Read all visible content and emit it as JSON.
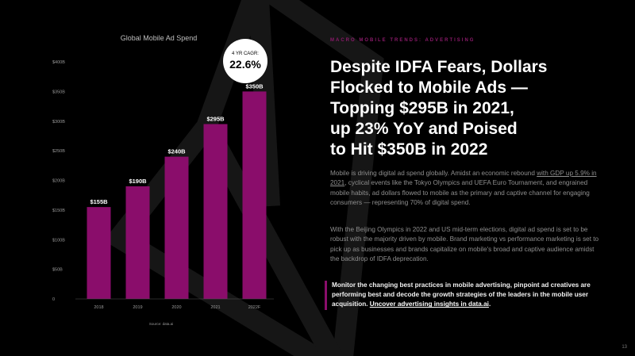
{
  "slide": {
    "eyebrow": "MACRO MOBILE TRENDS: ADVERTISING",
    "headline_lines": [
      "Despite IDFA Fears, Dollars",
      "Flocked to Mobile Ads —",
      "Topping $295B in 2021,",
      "up 23% YoY and Poised",
      "to Hit $350B in 2022"
    ],
    "para1": {
      "lead": "Mobile is driving digital ad spend globally. Amidst an economic rebound ",
      "link": "with GDP up 5.9% in 2021",
      "rest": ", cyclical events like the Tokyo Olympics and UEFA Euro Tournament, and engrained mobile habits, ad dollars flowed to mobile as the primary and captive channel for engaging consumers — representing 70% of digital spend."
    },
    "para2": "With the Beijing Olympics in 2022 and US mid-term elections, digital ad spend is set to be robust with the majority driven by mobile. Brand marketing vs performance marketing is set to pick up as businesses and brands capitalize on mobile's broad and captive audience amidst the backdrop of IDFA deprecation.",
    "callout": {
      "text": "Monitor the changing best practices in mobile advertising, pinpoint ad creatives are performing best and decode the growth strategies of the leaders in the mobile user acquisition. ",
      "link": "Uncover advertising insights in data.ai",
      "end": "."
    },
    "page_number": "13",
    "colors": {
      "bar": "#8a0d6b",
      "accent": "#8a1a6a",
      "background": "#000000"
    }
  },
  "chart_data": {
    "type": "bar",
    "title": "Global Mobile Ad Spend",
    "categories": [
      "2018",
      "2019",
      "2020",
      "2021",
      "2022F"
    ],
    "values": [
      155,
      190,
      240,
      295,
      350
    ],
    "value_labels": [
      "$155B",
      "$190B",
      "$240B",
      "$295B",
      "$350B"
    ],
    "ylim": [
      0,
      400
    ],
    "yticks": [
      0,
      50,
      100,
      150,
      200,
      250,
      300,
      350,
      400
    ],
    "ytick_labels": [
      "0",
      "$50B",
      "$100B",
      "$150B",
      "$200B",
      "$250B",
      "$300B",
      "$350B",
      "$400B"
    ],
    "xlabel": "",
    "ylabel": "",
    "grid": false,
    "source": "Source: data.ai",
    "badge": {
      "label": "4 YR CAGR:",
      "value": "22.6%"
    }
  }
}
